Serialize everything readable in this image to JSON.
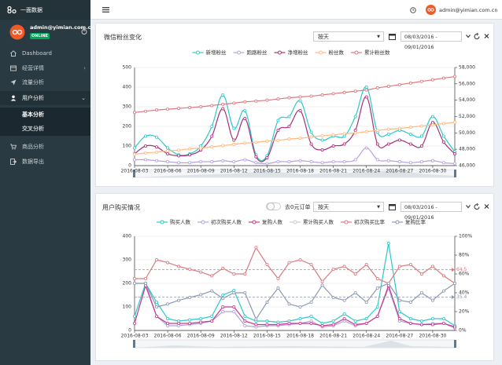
{
  "sidebar": {
    "brand": "一面数据",
    "user": "admin@yimian.com.cn",
    "status": "ONLINE",
    "menu": [
      "Dashboard",
      "经营详情",
      "流量分析",
      "用户分析"
    ],
    "submenu": [
      "基本分析",
      "交叉分析"
    ],
    "menu_after": [
      "商品分析",
      "数据导出"
    ]
  },
  "header": {
    "user": "admin@yimian.com.cn"
  },
  "chart_data": [
    {
      "type": "line",
      "title": "微信粉丝变化",
      "period": "按天",
      "date_range": "08/03/2016 - 09/01/2016",
      "smooth": true,
      "grid": true,
      "categories": [
        "2016-08-03",
        null,
        null,
        "2016-08-06",
        null,
        null,
        "2016-08-09",
        null,
        null,
        "2016-08-12",
        null,
        null,
        "2016-08-15",
        null,
        null,
        "2016-08-18",
        null,
        null,
        "2016-08-21",
        null,
        null,
        "2016-08-24",
        null,
        null,
        "2016-08-27",
        null,
        null,
        "2016-08-30",
        null,
        null
      ],
      "series": [
        {
          "name": "新增粉丝",
          "color": "#2ec7c9",
          "values": [
            90,
            150,
            145,
            90,
            55,
            60,
            100,
            200,
            360,
            190,
            280,
            55,
            50,
            230,
            250,
            330,
            170,
            130,
            150,
            150,
            250,
            400,
            170,
            160,
            180,
            160,
            150,
            250,
            150,
            70
          ]
        },
        {
          "name": "跑路粉丝",
          "color": "#b6a2de",
          "values": [
            30,
            30,
            25,
            20,
            15,
            15,
            20,
            20,
            25,
            20,
            30,
            15,
            10,
            20,
            20,
            25,
            20,
            15,
            20,
            20,
            30,
            90,
            30,
            25,
            20,
            15,
            20,
            25,
            15,
            10
          ]
        },
        {
          "name": "净增粉丝",
          "color": "#a5307a",
          "values": [
            60,
            100,
            95,
            60,
            50,
            55,
            80,
            150,
            290,
            130,
            240,
            45,
            40,
            180,
            200,
            280,
            110,
            80,
            100,
            110,
            180,
            350,
            110,
            110,
            130,
            110,
            100,
            220,
            120,
            60
          ]
        },
        {
          "name": "粉丝数",
          "color": "#ffb980",
          "axis": "y2",
          "values": [
            47400,
            47550,
            47650,
            47800,
            47900,
            48050,
            48150,
            48300,
            48450,
            48600,
            48750,
            48850,
            49000,
            49100,
            49250,
            49350,
            49500,
            49650,
            49750,
            49900,
            50000,
            50150,
            50300,
            50450,
            50550,
            50700,
            50850,
            51000,
            51150,
            51300
          ]
        },
        {
          "name": "累计粉丝数",
          "color": "#d87a80",
          "axis": "y2",
          "values": [
            52500,
            52650,
            52800,
            52900,
            53000,
            53100,
            53200,
            53350,
            53500,
            53650,
            53800,
            53900,
            54000,
            54150,
            54300,
            54400,
            54500,
            54650,
            54800,
            54950,
            55100,
            55250,
            55500,
            55700,
            55900,
            56100,
            56300,
            56500,
            56700,
            56900
          ]
        }
      ],
      "ylim": [
        0,
        500
      ],
      "yticks": [
        0,
        100,
        200,
        300,
        400,
        500
      ],
      "y2lim": [
        46000,
        58000
      ],
      "y2ticks": [
        {
          "value": 46000,
          "label": "46,000"
        },
        {
          "value": 48000,
          "label": "48,000"
        },
        {
          "value": 50000,
          "label": "50,000"
        },
        {
          "value": 52000,
          "label": "52,000"
        },
        {
          "value": 54000,
          "label": "54,000"
        },
        {
          "value": 56000,
          "label": "56,000"
        },
        {
          "value": 58000,
          "label": "58,000"
        }
      ]
    },
    {
      "type": "line",
      "title": "用户购买情况",
      "toggle": "去0元订单",
      "period": "按天",
      "date_range": "08/03/2016 - 09/01/2016",
      "smooth": false,
      "grid": true,
      "categories": [
        "2016-08-03",
        null,
        null,
        "2016-08-06",
        null,
        null,
        "2016-08-09",
        null,
        null,
        "2016-08-12",
        null,
        null,
        "2016-08-15",
        null,
        null,
        "2016-08-18",
        null,
        null,
        "2016-08-21",
        null,
        null,
        "2016-08-24",
        null,
        null,
        "2016-08-27",
        null,
        null,
        "2016-08-30",
        null,
        null
      ],
      "series": [
        {
          "name": "购买人数",
          "color": "#2ec7c9",
          "values": [
            60,
            200,
            120,
            50,
            40,
            45,
            50,
            60,
            150,
            170,
            60,
            40,
            40,
            35,
            40,
            50,
            60,
            30,
            40,
            70,
            40,
            50,
            100,
            370,
            80,
            50,
            40,
            50,
            50,
            20
          ]
        },
        {
          "name": "初次购买人数",
          "color": "#b6a2de",
          "values": [
            200,
            200,
            60,
            20,
            20,
            25,
            30,
            40,
            80,
            80,
            20,
            15,
            20,
            20,
            25,
            30,
            40,
            15,
            20,
            40,
            20,
            30,
            60,
            180,
            40,
            30,
            25,
            30,
            30,
            10
          ]
        },
        {
          "name": "复购人数",
          "color": "#c23a8c",
          "values": [
            30,
            190,
            60,
            30,
            30,
            30,
            35,
            40,
            100,
            100,
            40,
            25,
            25,
            25,
            30,
            30,
            30,
            20,
            25,
            50,
            25,
            30,
            60,
            190,
            50,
            30,
            25,
            25,
            30,
            15
          ]
        },
        {
          "name": "累计购买人数",
          "color": "#cccccc",
          "visible": false
        },
        {
          "name": "初次购买比率",
          "color": "#d87a80",
          "axis": "y2",
          "markLine": 64.5,
          "values": [
            55,
            55,
            75,
            72,
            68,
            65,
            62,
            58,
            66,
            60,
            60,
            88,
            70,
            55,
            72,
            75,
            70,
            52,
            65,
            68,
            60,
            70,
            55,
            50,
            68,
            70,
            60,
            68,
            58,
            50
          ]
        },
        {
          "name": "复购比率",
          "color": "#8d98b3",
          "axis": "y2",
          "markLine": 35.4,
          "values": [
            50,
            50,
            25,
            28,
            32,
            35,
            38,
            42,
            34,
            40,
            40,
            12,
            30,
            45,
            28,
            25,
            30,
            48,
            35,
            32,
            40,
            30,
            45,
            50,
            32,
            30,
            40,
            32,
            42,
            50
          ]
        }
      ],
      "ylim": [
        0,
        400
      ],
      "yticks": [
        0,
        100,
        200,
        300,
        400
      ],
      "y2lim": [
        0,
        100
      ],
      "y2ticks": [
        {
          "value": 0,
          "label": "0%"
        },
        {
          "value": 20,
          "label": "20%"
        },
        {
          "value": 40,
          "label": "40%"
        },
        {
          "value": 60,
          "label": "60%"
        },
        {
          "value": 80,
          "label": "80%"
        },
        {
          "value": 100,
          "label": "100%"
        }
      ]
    }
  ]
}
